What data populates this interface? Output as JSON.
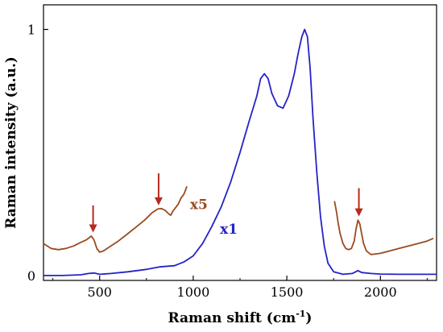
{
  "chart_data": {
    "type": "line",
    "xlabel": "Raman shift (cm",
    "xlabel_sup": "-1",
    "xlabel_close": ")",
    "ylabel": "Raman intensity (a.u.)",
    "xlim": [
      200,
      2300
    ],
    "ylim": [
      -0.02,
      1.1
    ],
    "x_ticks": [
      500,
      1000,
      1500,
      2000
    ],
    "x_tick_labels": [
      "500",
      "1000",
      "1500",
      "2000"
    ],
    "y_ticks": [
      0,
      1
    ],
    "y_tick_labels": [
      "0",
      "1"
    ],
    "grid": false,
    "legend": "none",
    "series": [
      {
        "label": "x1",
        "color": "#2323c8",
        "x": [
          200,
          300,
          400,
          440,
          470,
          500,
          560,
          650,
          750,
          820,
          900,
          950,
          1000,
          1050,
          1100,
          1150,
          1200,
          1250,
          1300,
          1340,
          1360,
          1380,
          1400,
          1420,
          1450,
          1480,
          1510,
          1540,
          1560,
          1580,
          1595,
          1610,
          1625,
          1640,
          1660,
          1680,
          1700,
          1720,
          1750,
          1800,
          1850,
          1880,
          1900,
          1950,
          2000,
          2100,
          2200,
          2300
        ],
        "y": [
          0.0,
          0.0,
          0.003,
          0.008,
          0.01,
          0.005,
          0.008,
          0.015,
          0.025,
          0.035,
          0.04,
          0.055,
          0.08,
          0.13,
          0.2,
          0.28,
          0.38,
          0.5,
          0.63,
          0.73,
          0.8,
          0.82,
          0.8,
          0.74,
          0.69,
          0.68,
          0.73,
          0.82,
          0.9,
          0.97,
          1.0,
          0.97,
          0.84,
          0.64,
          0.42,
          0.24,
          0.12,
          0.05,
          0.015,
          0.005,
          0.008,
          0.02,
          0.012,
          0.008,
          0.006,
          0.005,
          0.005,
          0.005
        ]
      },
      {
        "label": "x5",
        "color": "#9a4a1e",
        "segments": [
          {
            "x": [
              200,
              240,
              280,
              320,
              360,
              400,
              430,
              455,
              470,
              485,
              500,
              520,
              560,
              600,
              650,
              700,
              740,
              780,
              810,
              830,
              850,
              870,
              880,
              890,
              905,
              920,
              935,
              950,
              965
            ],
            "y": [
              0.13,
              0.11,
              0.105,
              0.11,
              0.12,
              0.135,
              0.145,
              0.16,
              0.145,
              0.11,
              0.095,
              0.1,
              0.12,
              0.14,
              0.17,
              0.2,
              0.225,
              0.255,
              0.27,
              0.272,
              0.265,
              0.25,
              0.245,
              0.26,
              0.275,
              0.29,
              0.315,
              0.33,
              0.36
            ]
          },
          {
            "x": [
              1755,
              1765,
              1775,
              1785,
              1800,
              1815,
              1830,
              1845,
              1860,
              1870,
              1880,
              1890,
              1900,
              1910,
              1925,
              1950,
              2000,
              2050,
              2100,
              2150,
              2200,
              2250,
              2280
            ],
            "y": [
              0.3,
              0.26,
              0.21,
              0.17,
              0.13,
              0.11,
              0.105,
              0.11,
              0.14,
              0.19,
              0.225,
              0.21,
              0.17,
              0.13,
              0.1,
              0.085,
              0.09,
              0.1,
              0.11,
              0.12,
              0.13,
              0.14,
              0.15
            ]
          }
        ]
      }
    ],
    "annotations": [
      {
        "text": "x5",
        "x": 1030,
        "y": 0.27,
        "color": "#9a4a1e"
      },
      {
        "text": "x1",
        "x": 1190,
        "y": 0.17,
        "color": "#2323c8"
      }
    ],
    "arrows": [
      {
        "x": 465,
        "y_top": 0.285,
        "y_tip": 0.175,
        "color": "#b8291e"
      },
      {
        "x": 815,
        "y_top": 0.415,
        "y_tip": 0.285,
        "color": "#b8291e"
      },
      {
        "x": 1885,
        "y_top": 0.355,
        "y_tip": 0.24,
        "color": "#b8291e"
      }
    ]
  }
}
